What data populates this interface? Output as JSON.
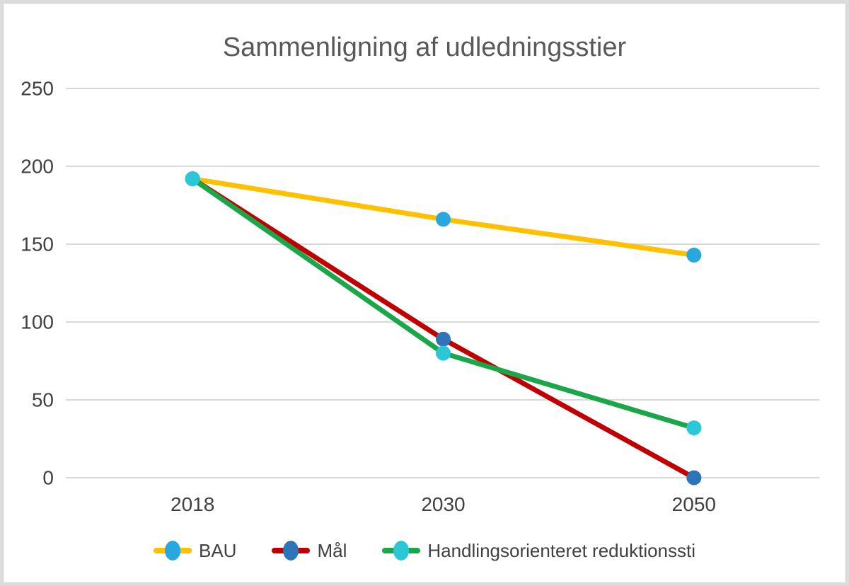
{
  "chart_data": {
    "type": "line",
    "title": "Sammenligning af udledningsstier",
    "categories": [
      "2018",
      "2030",
      "2050"
    ],
    "series": [
      {
        "name": "BAU",
        "values": [
          192,
          166,
          143
        ],
        "line_color": "#FFC000",
        "marker_color": "#29A7DF"
      },
      {
        "name": "Mål",
        "values": [
          192,
          89,
          0
        ],
        "line_color": "#C00000",
        "marker_color": "#2D74B9"
      },
      {
        "name": "Handlingsorienteret reduktionssti",
        "values": [
          192,
          80,
          32
        ],
        "line_color": "#1CA64A",
        "marker_color": "#2CC7D7"
      }
    ],
    "xlabel": "",
    "ylabel": "",
    "ylim": [
      0,
      250
    ],
    "yticks": [
      0,
      50,
      100,
      150,
      200,
      250
    ],
    "grid": true,
    "legend_position": "bottom",
    "colors": {
      "title_text": "#595959",
      "axis_text": "#404040",
      "gridline": "#D9D9D9",
      "background": "#FFFFFF",
      "frame_border": "#DCDCDC"
    }
  }
}
